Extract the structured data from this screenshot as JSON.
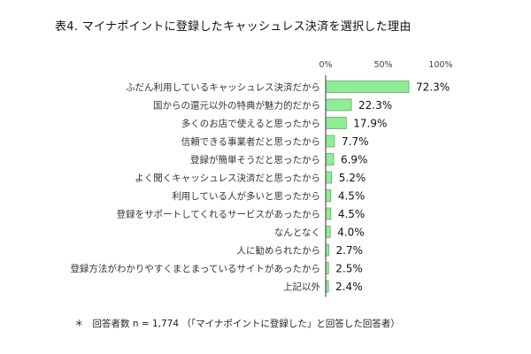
{
  "title": "表4. マイナポイントに登録したキャッシュレス決済を選択した理由",
  "footnote": {
    "marker": "＊",
    "text": "回答者数 n = 1,774 （「マイナポイントに登録した」と回答した回答者）"
  },
  "colors": {
    "bar_fill": "#8fee95",
    "bar_stroke": "#6a8f6c"
  },
  "chart_data": {
    "type": "bar",
    "orientation": "horizontal",
    "title": "表4. マイナポイントに登録したキャッシュレス決済を選択した理由",
    "xlim": [
      0,
      100
    ],
    "x_ticks": [
      "0%",
      "50%",
      "100%"
    ],
    "grid": false,
    "categories": [
      "ふだん利用しているキャッシュレス決済だから",
      "国からの還元以外の特典が魅力的だから",
      "多くのお店で使えると思ったから",
      "信頼できる事業者だと思ったから",
      "登録が簡単そうだと思ったから",
      "よく聞くキャッシュレス決済だと思ったから",
      "利用している人が多いと思ったから",
      "登録をサポートしてくれるサービスがあったから",
      "なんとなく",
      "人に勧められたから",
      "登録方法がわかりやすくまとまっているサイトがあったから",
      "上記以外"
    ],
    "values": [
      72.3,
      22.3,
      17.9,
      7.7,
      6.9,
      5.2,
      4.5,
      4.5,
      4.0,
      2.7,
      2.5,
      2.4
    ],
    "value_labels": [
      "72.3%",
      "22.3%",
      "17.9%",
      "7.7%",
      "6.9%",
      "5.2%",
      "4.5%",
      "4.5%",
      "4.0%",
      "2.7%",
      "2.5%",
      "2.4%"
    ]
  }
}
